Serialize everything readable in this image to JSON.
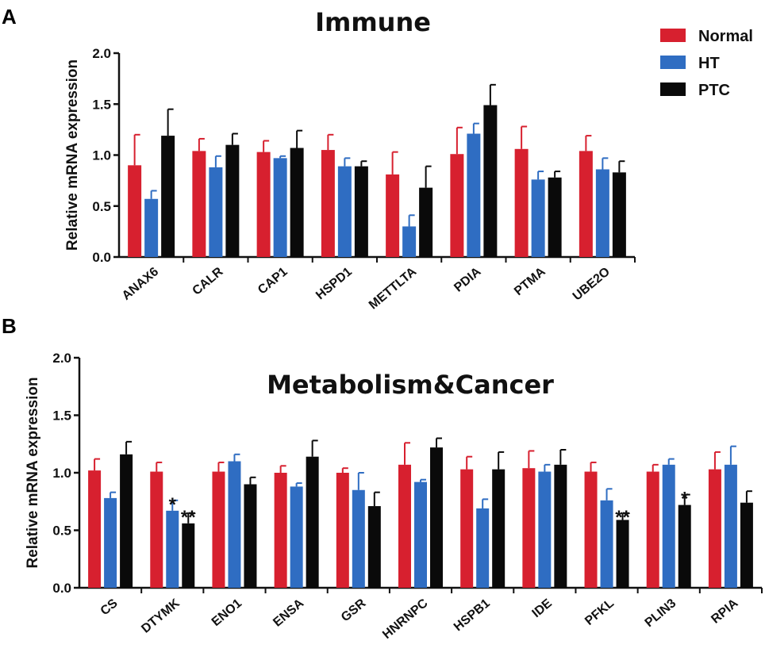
{
  "figure": {
    "panel_labels": [
      "A",
      "B"
    ]
  },
  "legend": {
    "entries": [
      {
        "name": "Normal",
        "color": "#d7202f"
      },
      {
        "name": "HT",
        "color": "#2f6dc2"
      },
      {
        "name": "PTC",
        "color": "#0a0a0a"
      }
    ]
  },
  "chart_data": [
    {
      "type": "bar",
      "title": "Immune",
      "ylabel": "Relative mRNA expression",
      "xlabel": "",
      "ylim": [
        0,
        2.0
      ],
      "yticks": [
        "0.0",
        "0.5",
        "1.0",
        "1.5",
        "2.0"
      ],
      "categories": [
        "ANAX6",
        "CALR",
        "CAP1",
        "HSPD1",
        "METTLTA",
        "PDIA",
        "PTMA",
        "UBE2O"
      ],
      "series": [
        {
          "name": "Normal",
          "color": "#d7202f",
          "values": [
            0.9,
            1.04,
            1.03,
            1.05,
            0.81,
            1.01,
            1.06,
            1.04
          ],
          "errors": [
            0.3,
            0.12,
            0.11,
            0.15,
            0.22,
            0.26,
            0.22,
            0.15
          ]
        },
        {
          "name": "HT",
          "color": "#2f6dc2",
          "values": [
            0.57,
            0.88,
            0.97,
            0.89,
            0.3,
            1.21,
            0.76,
            0.86
          ],
          "errors": [
            0.08,
            0.11,
            0.02,
            0.08,
            0.11,
            0.1,
            0.08,
            0.11
          ]
        },
        {
          "name": "PTC",
          "color": "#0a0a0a",
          "values": [
            1.19,
            1.1,
            1.07,
            0.89,
            0.68,
            1.49,
            0.78,
            0.83
          ],
          "errors": [
            0.26,
            0.11,
            0.17,
            0.05,
            0.21,
            0.2,
            0.06,
            0.11
          ]
        }
      ],
      "annotations": []
    },
    {
      "type": "bar",
      "title": "Metabolism&Cancer",
      "ylabel": "Relative mRNA expression",
      "xlabel": "",
      "ylim": [
        0,
        2.0
      ],
      "yticks": [
        "0.0",
        "0.5",
        "1.0",
        "1.5",
        "2.0"
      ],
      "categories": [
        "CS",
        "DTYMK",
        "ENO1",
        "ENSA",
        "GSR",
        "HNRNPC",
        "HSPB1",
        "IDE",
        "PFKL",
        "PLIN3",
        "RPIA"
      ],
      "series": [
        {
          "name": "Normal",
          "color": "#d7202f",
          "values": [
            1.02,
            1.01,
            1.01,
            1.0,
            1.0,
            1.07,
            1.03,
            1.04,
            1.01,
            1.01,
            1.03
          ],
          "errors": [
            0.1,
            0.08,
            0.08,
            0.06,
            0.04,
            0.19,
            0.11,
            0.15,
            0.08,
            0.06,
            0.15
          ]
        },
        {
          "name": "HT",
          "color": "#2f6dc2",
          "values": [
            0.78,
            0.67,
            1.1,
            0.88,
            0.85,
            0.92,
            0.69,
            1.01,
            0.76,
            1.07,
            1.07
          ],
          "errors": [
            0.05,
            0.09,
            0.06,
            0.03,
            0.15,
            0.02,
            0.08,
            0.06,
            0.1,
            0.05,
            0.16
          ]
        },
        {
          "name": "PTC",
          "color": "#0a0a0a",
          "values": [
            1.16,
            0.56,
            0.9,
            1.14,
            0.71,
            1.22,
            1.03,
            1.07,
            0.59,
            0.72,
            0.74
          ],
          "errors": [
            0.11,
            0.09,
            0.06,
            0.14,
            0.12,
            0.08,
            0.15,
            0.13,
            0.06,
            0.09,
            0.1
          ]
        }
      ],
      "annotations": [
        {
          "text": "*",
          "category": "DTYMK",
          "series": "HT"
        },
        {
          "text": "**",
          "category": "DTYMK",
          "series": "PTC"
        },
        {
          "text": "**",
          "category": "PFKL",
          "series": "PTC"
        },
        {
          "text": "*",
          "category": "PLIN3",
          "series": "PTC"
        }
      ]
    }
  ]
}
